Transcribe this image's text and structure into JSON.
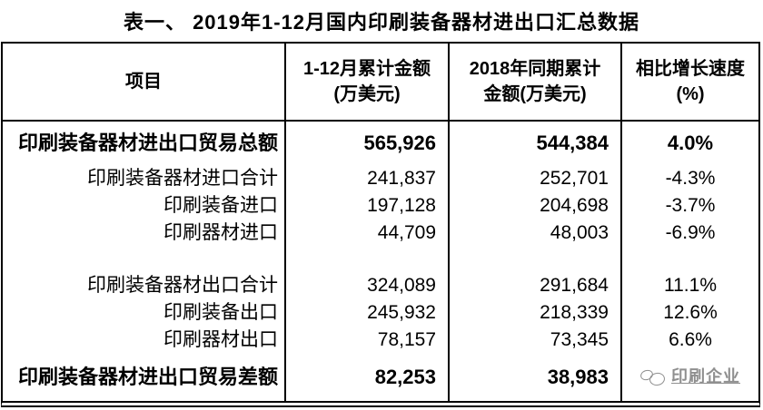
{
  "title": "表一、 2019年1-12月国内印刷装备器材进出口汇总数据",
  "colors": {
    "background": "#ffffff",
    "text": "#000000",
    "border": "#000000",
    "watermark": "#8f8f8f"
  },
  "table": {
    "headers": {
      "col1": "项目",
      "col2": [
        "1-12月累计金额",
        "(万美元)"
      ],
      "col3": [
        "2018年同期累计",
        "金额(万美元)"
      ],
      "col4": [
        "相比增长速度",
        "(%)"
      ]
    },
    "rows": [
      {
        "label": "印刷装备器材进出口贸易总额",
        "amount_2019": "565,926",
        "amount_2018": "544,384",
        "growth": "4.0%"
      },
      {
        "label": "印刷装备器材进口合计",
        "amount_2019": "241,837",
        "amount_2018": "252,701",
        "growth": "-4.3%"
      },
      {
        "label": "印刷装备进口",
        "amount_2019": "197,128",
        "amount_2018": "204,698",
        "growth": "-3.7%"
      },
      {
        "label": "印刷器材进口",
        "amount_2019": "44,709",
        "amount_2018": "48,003",
        "growth": "-6.9%"
      },
      {
        "label": "印刷装备器材出口合计",
        "amount_2019": "324,089",
        "amount_2018": "291,684",
        "growth": "11.1%"
      },
      {
        "label": "印刷装备出口",
        "amount_2019": "245,932",
        "amount_2018": "218,339",
        "growth": "12.6%"
      },
      {
        "label": "印刷器材出口",
        "amount_2019": "78,157",
        "amount_2018": "73,345",
        "growth": "6.6%"
      },
      {
        "label": "印刷装备器材进出口贸易差额",
        "amount_2019": "82,253",
        "amount_2018": "38,983",
        "growth": ""
      }
    ]
  },
  "watermark": {
    "text": "印刷企业"
  },
  "chart_data": {
    "type": "table",
    "title": "表一、 2019年1-12月国内印刷装备器材进出口汇总数据",
    "columns": [
      "项目",
      "1-12月累计金额(万美元)",
      "2018年同期累计金额(万美元)",
      "相比增长速度(%)"
    ],
    "rows": [
      [
        "印刷装备器材进出口贸易总额",
        565926,
        544384,
        4.0
      ],
      [
        "印刷装备器材进口合计",
        241837,
        252701,
        -4.3
      ],
      [
        "印刷装备进口",
        197128,
        204698,
        -3.7
      ],
      [
        "印刷器材进口",
        44709,
        48003,
        -6.9
      ],
      [
        "印刷装备器材出口合计",
        324089,
        291684,
        11.1
      ],
      [
        "印刷装备出口",
        245932,
        218339,
        12.6
      ],
      [
        "印刷器材出口",
        78157,
        73345,
        6.6
      ],
      [
        "印刷装备器材进出口贸易差额",
        82253,
        38983,
        null
      ]
    ]
  }
}
